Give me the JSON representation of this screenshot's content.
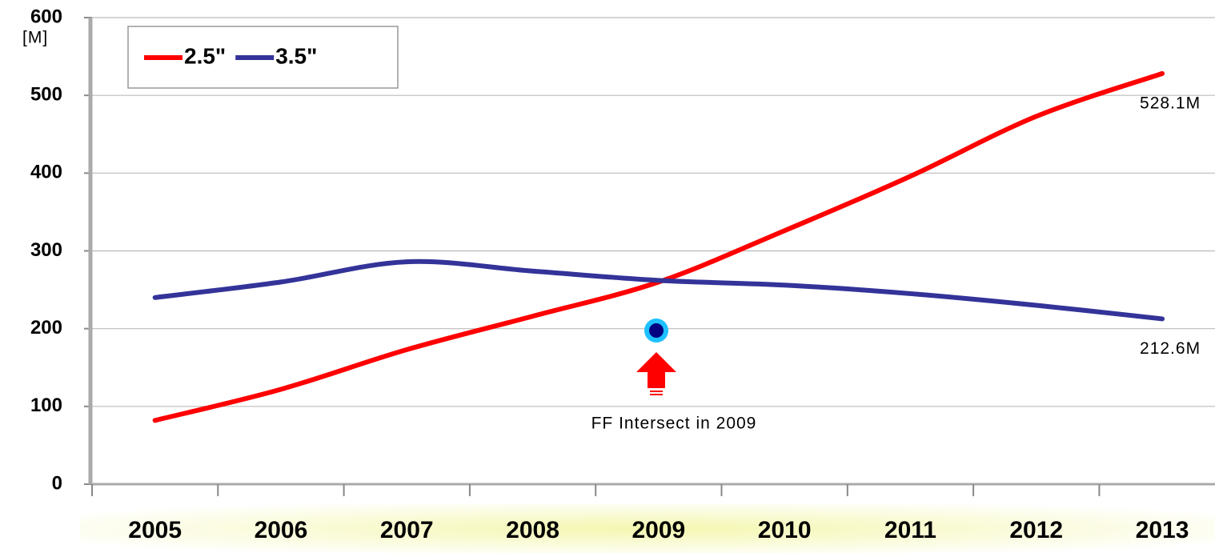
{
  "chart_data": {
    "type": "line",
    "unit_label": "[M]",
    "categories": [
      "2005",
      "2006",
      "2007",
      "2008",
      "2009",
      "2010",
      "2011",
      "2012",
      "2013"
    ],
    "series": [
      {
        "name": "2.5\"",
        "color": "#ff0000",
        "values": [
          82,
          122,
          173,
          216,
          260,
          326,
          396,
          473,
          528.1
        ],
        "value_labels": [
          null,
          null,
          null,
          null,
          null,
          null,
          null,
          null,
          "528.1M"
        ]
      },
      {
        "name": "3.5\"",
        "color": "#333399",
        "values": [
          240,
          260,
          286,
          274,
          262,
          256,
          245,
          230,
          212.6
        ],
        "value_labels": [
          null,
          null,
          null,
          null,
          null,
          null,
          null,
          null,
          "212.6M"
        ]
      }
    ],
    "annotation": "FF Intersect in 2009",
    "ylim": [
      0,
      600
    ],
    "yticks": [
      0,
      100,
      200,
      300,
      400,
      500,
      600
    ],
    "grid": true
  }
}
